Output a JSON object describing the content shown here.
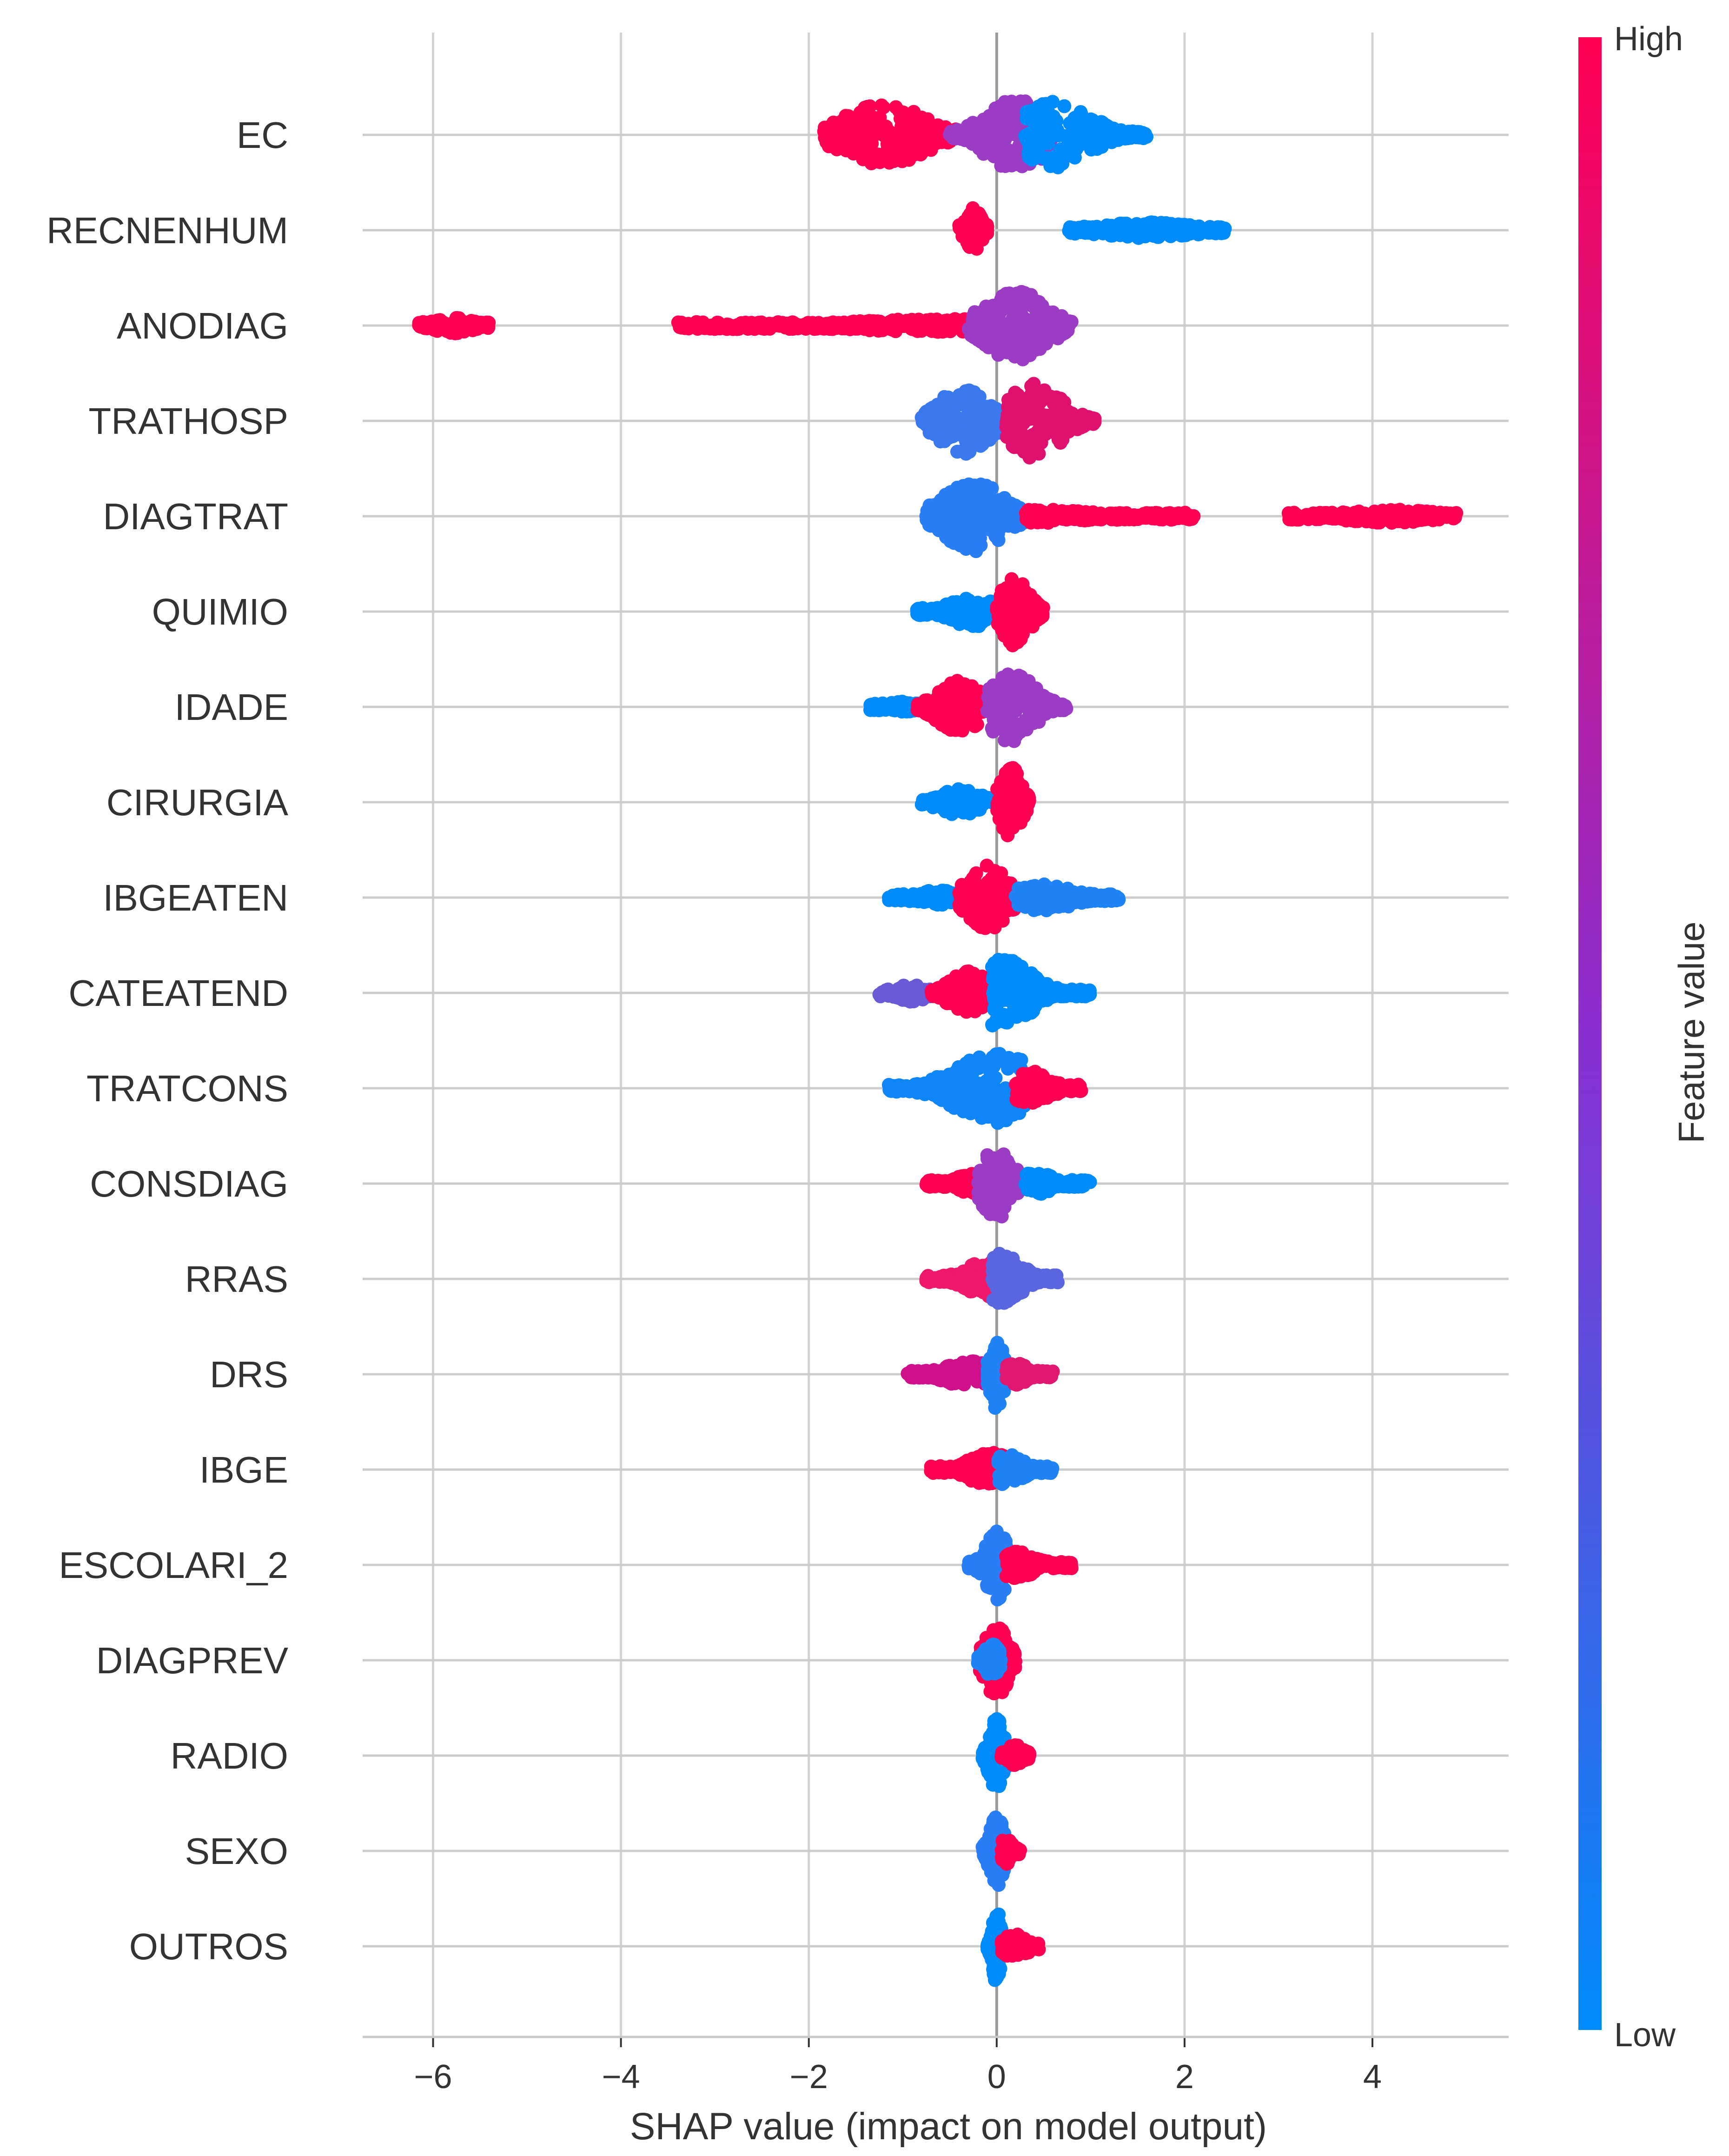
{
  "chart_data": {
    "type": "scatter",
    "subtype": "shap-beeswarm-summary",
    "title": "",
    "xlabel": "SHAP value (impact on model output)",
    "xlim": [
      -6.75,
      5.45
    ],
    "x_ticks": [
      -6,
      -4,
      -2,
      0,
      2,
      4
    ],
    "x_tick_labels": [
      "−6",
      "−4",
      "−2",
      "0",
      "2",
      "4"
    ],
    "colorbar": {
      "label": "Feature value",
      "high_label": "High",
      "low_label": "Low",
      "high_color": "#ff0052",
      "low_color": "#008bfb"
    },
    "features": [
      {
        "name": "EC",
        "clusters": [
          {
            "from": -1.85,
            "to": -0.4,
            "color": "#ff0052",
            "width": 0.7,
            "peak": -1.2
          },
          {
            "from": -0.5,
            "to": 0.6,
            "color": "#9a3cc4",
            "width": 0.8,
            "peak": 0.2
          },
          {
            "from": 0.3,
            "to": 1.6,
            "color": "#008bfb",
            "width": 0.75,
            "peak": 0.6
          }
        ]
      },
      {
        "name": "RECNENHUM",
        "clusters": [
          {
            "from": -0.4,
            "to": -0.1,
            "color": "#ff0052",
            "width": 0.5,
            "peak": -0.25
          },
          {
            "from": 0.75,
            "to": 2.45,
            "color": "#008bfb",
            "width": 0.18,
            "peak": 1.6
          }
        ]
      },
      {
        "name": "ANODIAG",
        "clusters": [
          {
            "from": -6.15,
            "to": -5.4,
            "color": "#ff0052",
            "width": 0.18,
            "peak": -5.8
          },
          {
            "from": -3.4,
            "to": -0.2,
            "color": "#ff0052",
            "width": 0.15,
            "peak": -0.6
          },
          {
            "from": -0.3,
            "to": 0.8,
            "color": "#9a3cc4",
            "width": 0.8,
            "peak": 0.2
          }
        ]
      },
      {
        "name": "TRATHOSP",
        "clusters": [
          {
            "from": -0.8,
            "to": 0.1,
            "color": "#3a78ee",
            "width": 0.75,
            "peak": -0.35
          },
          {
            "from": 0.1,
            "to": 1.05,
            "color": "#e0106e",
            "width": 0.85,
            "peak": 0.4
          }
        ]
      },
      {
        "name": "DIAGTRAT",
        "clusters": [
          {
            "from": -0.75,
            "to": 0.3,
            "color": "#2a7ef5",
            "width": 0.8,
            "peak": -0.25
          },
          {
            "from": 0.3,
            "to": 2.1,
            "color": "#ff0052",
            "width": 0.15,
            "peak": 0.5
          },
          {
            "from": 3.1,
            "to": 4.9,
            "color": "#ff0052",
            "width": 0.15,
            "peak": 4.2
          }
        ]
      },
      {
        "name": "QUIMIO",
        "clusters": [
          {
            "from": -0.85,
            "to": -0.05,
            "color": "#008bfb",
            "width": 0.35,
            "peak": -0.25
          },
          {
            "from": 0.0,
            "to": 0.5,
            "color": "#ff0052",
            "width": 0.8,
            "peak": 0.2
          }
        ]
      },
      {
        "name": "IDADE",
        "clusters": [
          {
            "from": -1.35,
            "to": -0.8,
            "color": "#008bfb",
            "width": 0.12,
            "peak": -1.0
          },
          {
            "from": -0.85,
            "to": -0.1,
            "color": "#ff0052",
            "width": 0.6,
            "peak": -0.4
          },
          {
            "from": -0.1,
            "to": 0.75,
            "color": "#9a3cc4",
            "width": 0.8,
            "peak": 0.15
          }
        ]
      },
      {
        "name": "CIRURGIA",
        "clusters": [
          {
            "from": -0.8,
            "to": -0.05,
            "color": "#008bfb",
            "width": 0.3,
            "peak": -0.4
          },
          {
            "from": 0.0,
            "to": 0.35,
            "color": "#ff0052",
            "width": 0.85,
            "peak": 0.15
          }
        ]
      },
      {
        "name": "IBGEATEN",
        "clusters": [
          {
            "from": -1.15,
            "to": -0.4,
            "color": "#008bfb",
            "width": 0.18,
            "peak": -0.6
          },
          {
            "from": -0.4,
            "to": 0.3,
            "color": "#ff0052",
            "width": 0.75,
            "peak": -0.1
          },
          {
            "from": 0.2,
            "to": 1.3,
            "color": "#1f83f5",
            "width": 0.3,
            "peak": 0.5
          }
        ]
      },
      {
        "name": "CATEATEND",
        "clusters": [
          {
            "from": -1.25,
            "to": -0.7,
            "color": "#6a5ad6",
            "width": 0.2,
            "peak": -0.9
          },
          {
            "from": -0.7,
            "to": -0.05,
            "color": "#ff0052",
            "width": 0.5,
            "peak": -0.3
          },
          {
            "from": -0.05,
            "to": 1.0,
            "color": "#008bfb",
            "width": 0.8,
            "peak": 0.05
          }
        ]
      },
      {
        "name": "TRATCONS",
        "clusters": [
          {
            "from": -1.15,
            "to": 0.3,
            "color": "#0f86f8",
            "width": 0.8,
            "peak": 0.0
          },
          {
            "from": 0.2,
            "to": 0.9,
            "color": "#ff0052",
            "width": 0.4,
            "peak": 0.35
          }
        ]
      },
      {
        "name": "CONSDIAG",
        "clusters": [
          {
            "from": -0.75,
            "to": -0.1,
            "color": "#ff0052",
            "width": 0.3,
            "peak": -0.2
          },
          {
            "from": -0.2,
            "to": 0.35,
            "color": "#9a3cc4",
            "width": 0.8,
            "peak": 0.0
          },
          {
            "from": 0.3,
            "to": 1.0,
            "color": "#008bfb",
            "width": 0.25,
            "peak": 0.4
          }
        ]
      },
      {
        "name": "RRAS",
        "clusters": [
          {
            "from": -0.75,
            "to": 0.05,
            "color": "#f0186a",
            "width": 0.4,
            "peak": -0.1
          },
          {
            "from": -0.05,
            "to": 0.65,
            "color": "#5a66e0",
            "width": 0.6,
            "peak": 0.05
          }
        ]
      },
      {
        "name": "DRS",
        "clusters": [
          {
            "from": -0.95,
            "to": -0.1,
            "color": "#d0108a",
            "width": 0.3,
            "peak": -0.3
          },
          {
            "from": -0.1,
            "to": 0.15,
            "color": "#1f83f5",
            "width": 0.8,
            "peak": 0.0
          },
          {
            "from": 0.1,
            "to": 0.6,
            "color": "#e01870",
            "width": 0.25,
            "peak": 0.2
          }
        ]
      },
      {
        "name": "IBGE",
        "clusters": [
          {
            "from": -0.7,
            "to": 0.1,
            "color": "#ff0052",
            "width": 0.4,
            "peak": -0.05
          },
          {
            "from": 0.0,
            "to": 0.6,
            "color": "#1f83f5",
            "width": 0.35,
            "peak": 0.1
          }
        ]
      },
      {
        "name": "ESCOLARI_2",
        "clusters": [
          {
            "from": -0.3,
            "to": 0.1,
            "color": "#2a7ef5",
            "width": 0.8,
            "peak": 0.0
          },
          {
            "from": 0.1,
            "to": 0.8,
            "color": "#ff0052",
            "width": 0.3,
            "peak": 0.2
          }
        ]
      },
      {
        "name": "DIAGPREV",
        "clusters": [
          {
            "from": -0.2,
            "to": 0.2,
            "color": "#ff0052",
            "width": 0.85,
            "peak": 0.0
          },
          {
            "from": -0.2,
            "to": 0.05,
            "color": "#1f83f5",
            "width": 0.4,
            "peak": -0.05
          }
        ]
      },
      {
        "name": "RADIO",
        "clusters": [
          {
            "from": -0.15,
            "to": 0.1,
            "color": "#008bfb",
            "width": 0.85,
            "peak": 0.0
          },
          {
            "from": 0.05,
            "to": 0.35,
            "color": "#ff0052",
            "width": 0.25,
            "peak": 0.2
          }
        ]
      },
      {
        "name": "SEXO",
        "clusters": [
          {
            "from": -0.15,
            "to": 0.1,
            "color": "#2a7ef5",
            "width": 0.8,
            "peak": 0.0
          },
          {
            "from": 0.05,
            "to": 0.25,
            "color": "#ff0052",
            "width": 0.3,
            "peak": 0.1
          }
        ]
      },
      {
        "name": "OUTROS",
        "clusters": [
          {
            "from": -0.1,
            "to": 0.05,
            "color": "#008bfb",
            "width": 0.85,
            "peak": 0.0
          },
          {
            "from": 0.05,
            "to": 0.45,
            "color": "#ff0052",
            "width": 0.3,
            "peak": 0.2
          }
        ]
      }
    ]
  }
}
